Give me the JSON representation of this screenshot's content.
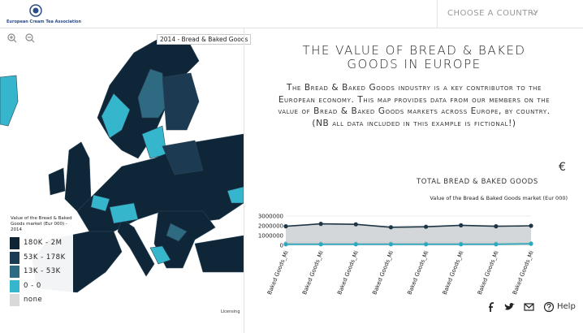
{
  "header": {
    "logo_text": "European Cream Tea Association",
    "country_select": "CHOOSE A COUNTRY"
  },
  "map": {
    "dataset_select": "2014 - Bread & Baked Goods",
    "licensing": "Licensing",
    "legend": {
      "title": "Value of the Bread & Baked Goods market (Eur 000) - 2014",
      "items": [
        {
          "label": "180K - 2M",
          "color": "#0e2435"
        },
        {
          "label": "53K - 178K",
          "color": "#1c3b52"
        },
        {
          "label": "13K - 53K",
          "color": "#2e6b82"
        },
        {
          "label": "0 - 0",
          "color": "#35b6cd"
        },
        {
          "label": "none",
          "color": "#d9d9d9"
        }
      ]
    }
  },
  "panel": {
    "title": "THE VALUE OF BREAD & BAKED GOODS IN EUROPE",
    "description": "The Bread & Baked Goods industry is a key contributor to the European economy. This map provides data from our members on the value of Bread & Baked Goods markets across Europe, by country. (NB all data included in this example is fictional!)",
    "currency": "€",
    "section_title": "TOTAL BREAD & BAKED GOODS"
  },
  "chart_data": {
    "type": "line",
    "title": "Value of the Bread & Baked Goods market (Eur 000)",
    "categories": [
      "Baked Goods_Mi",
      "Baked Goods_Mi",
      "Baked Goods_Mi",
      "Baked Goods_Mi",
      "Baked Goods_Mi",
      "Baked Goods_Mi",
      "Baked Goods_Mi",
      "Baked Goods_Mi"
    ],
    "series": [
      {
        "color": "#1d3545",
        "area": true,
        "values": [
          1950000,
          2200000,
          2150000,
          1850000,
          1900000,
          2050000,
          1950000,
          2000000
        ]
      },
      {
        "color": "#b8c3c7",
        "area": false,
        "values": [
          200000,
          200000,
          200000,
          200000,
          200000,
          200000,
          200000,
          200000
        ]
      },
      {
        "color": "#2aa9bf",
        "area": false,
        "values": [
          100000,
          100000,
          100000,
          100000,
          100000,
          100000,
          100000,
          150000
        ]
      }
    ],
    "ylim": [
      0,
      3000000
    ],
    "yticks": [
      0,
      1000000,
      2000000,
      3000000
    ],
    "grid": true
  },
  "footer": {
    "help": "Help"
  }
}
